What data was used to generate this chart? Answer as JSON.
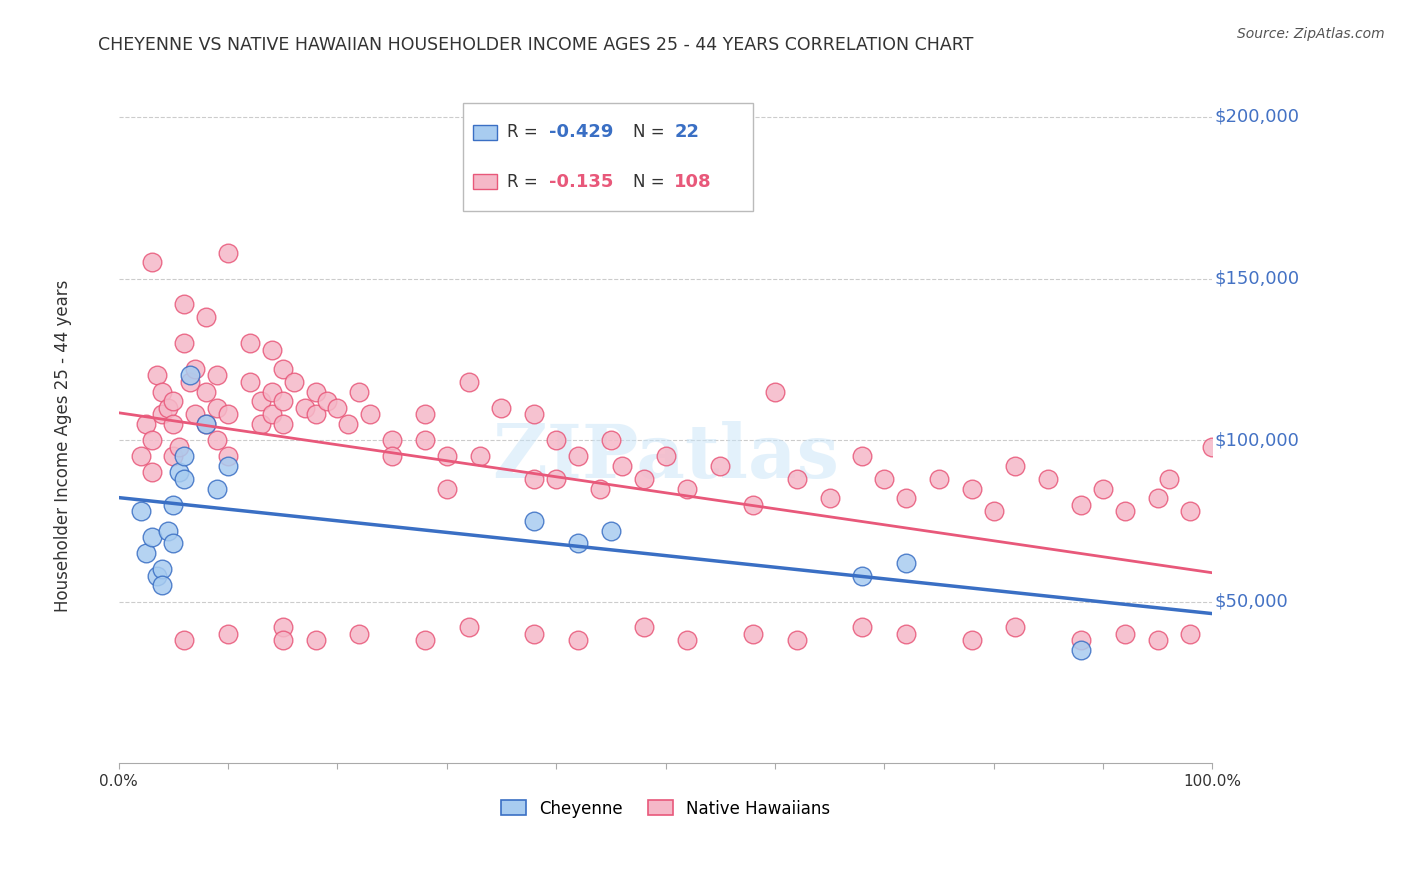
{
  "title": "CHEYENNE VS NATIVE HAWAIIAN HOUSEHOLDER INCOME AGES 25 - 44 YEARS CORRELATION CHART",
  "source": "Source: ZipAtlas.com",
  "ylabel": "Householder Income Ages 25 - 44 years",
  "watermark": "ZIPatlas",
  "ylim": [
    0,
    215000
  ],
  "xlim": [
    0.0,
    1.0
  ],
  "blue_color": "#A8CCF0",
  "pink_color": "#F5B8C8",
  "blue_line_color": "#3A6FC4",
  "pink_line_color": "#E8587A",
  "right_label_color": "#4472C4",
  "title_color": "#333333",
  "grid_color": "#CCCCCC",
  "legend_R_blue": "-0.429",
  "legend_N_blue": "22",
  "legend_R_pink": "-0.135",
  "legend_N_pink": "108",
  "blue_scatter_x": [
    0.02,
    0.025,
    0.03,
    0.035,
    0.04,
    0.04,
    0.045,
    0.05,
    0.05,
    0.055,
    0.06,
    0.06,
    0.065,
    0.08,
    0.09,
    0.1,
    0.38,
    0.42,
    0.45,
    0.68,
    0.72,
    0.88
  ],
  "blue_scatter_y": [
    78000,
    65000,
    70000,
    58000,
    60000,
    55000,
    72000,
    80000,
    68000,
    90000,
    95000,
    88000,
    120000,
    105000,
    85000,
    92000,
    75000,
    68000,
    72000,
    58000,
    62000,
    35000
  ],
  "pink_scatter_x": [
    0.02,
    0.025,
    0.03,
    0.03,
    0.035,
    0.04,
    0.04,
    0.045,
    0.05,
    0.05,
    0.05,
    0.055,
    0.06,
    0.065,
    0.07,
    0.07,
    0.08,
    0.08,
    0.09,
    0.09,
    0.09,
    0.1,
    0.1,
    0.12,
    0.12,
    0.13,
    0.13,
    0.14,
    0.14,
    0.14,
    0.15,
    0.15,
    0.15,
    0.16,
    0.17,
    0.18,
    0.18,
    0.19,
    0.2,
    0.21,
    0.22,
    0.23,
    0.25,
    0.25,
    0.28,
    0.28,
    0.3,
    0.3,
    0.32,
    0.33,
    0.35,
    0.38,
    0.38,
    0.4,
    0.4,
    0.42,
    0.44,
    0.45,
    0.46,
    0.48,
    0.5,
    0.52,
    0.55,
    0.58,
    0.6,
    0.62,
    0.65,
    0.68,
    0.7,
    0.72,
    0.75,
    0.78,
    0.8,
    0.82,
    0.85,
    0.88,
    0.9,
    0.92,
    0.95,
    0.96,
    0.98,
    1.0,
    0.03,
    0.06,
    0.08,
    0.1,
    0.15,
    0.18,
    0.22,
    0.28,
    0.32,
    0.38,
    0.42,
    0.48,
    0.52,
    0.58,
    0.62,
    0.68,
    0.72,
    0.78,
    0.82,
    0.88,
    0.92,
    0.95,
    0.98,
    0.06,
    0.1,
    0.15,
    0.22
  ],
  "pink_scatter_y": [
    95000,
    105000,
    100000,
    90000,
    120000,
    108000,
    115000,
    110000,
    95000,
    105000,
    112000,
    98000,
    130000,
    118000,
    122000,
    108000,
    115000,
    105000,
    120000,
    110000,
    100000,
    108000,
    95000,
    130000,
    118000,
    112000,
    105000,
    128000,
    115000,
    108000,
    122000,
    112000,
    105000,
    118000,
    110000,
    115000,
    108000,
    112000,
    110000,
    105000,
    115000,
    108000,
    100000,
    95000,
    108000,
    100000,
    95000,
    85000,
    118000,
    95000,
    110000,
    108000,
    88000,
    100000,
    88000,
    95000,
    85000,
    100000,
    92000,
    88000,
    95000,
    85000,
    92000,
    80000,
    115000,
    88000,
    82000,
    95000,
    88000,
    82000,
    88000,
    85000,
    78000,
    92000,
    88000,
    80000,
    85000,
    78000,
    82000,
    88000,
    78000,
    98000,
    155000,
    142000,
    138000,
    158000,
    42000,
    38000,
    40000,
    38000,
    42000,
    40000,
    38000,
    42000,
    38000,
    40000,
    38000,
    42000,
    40000,
    38000,
    42000,
    38000,
    40000,
    38000,
    40000,
    38000,
    40000,
    38000
  ]
}
